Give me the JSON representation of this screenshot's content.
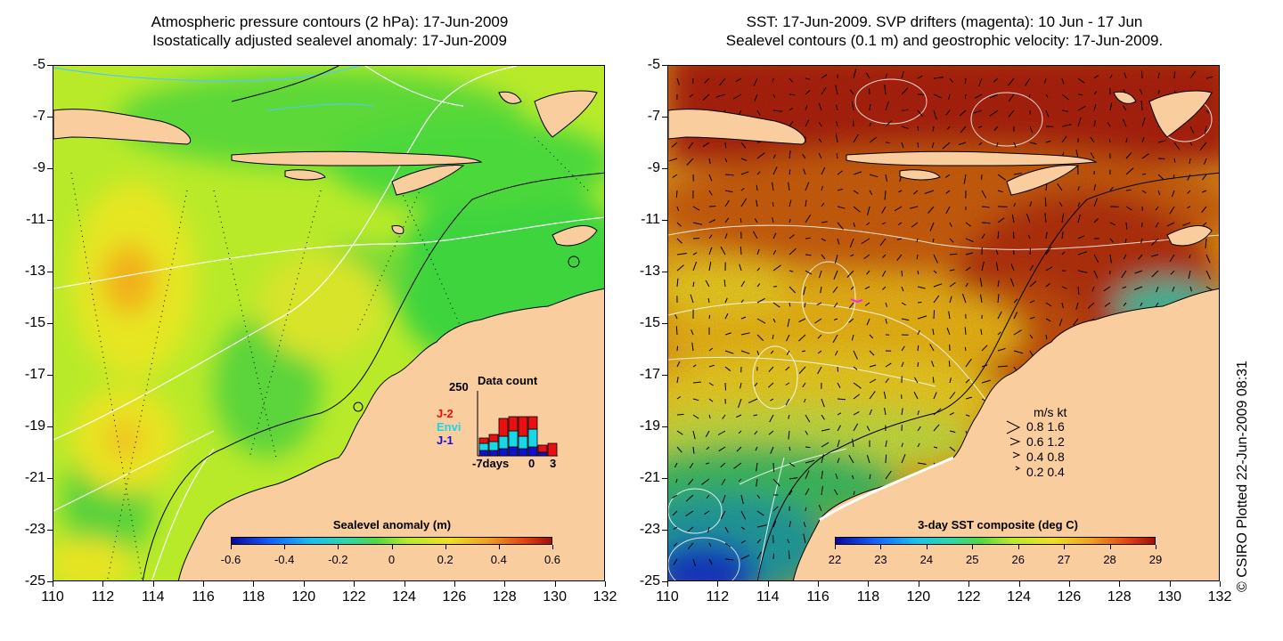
{
  "left_panel": {
    "title_line1": "Atmospheric pressure contours (2 hPa): 17-Jun-2009",
    "title_line2": "Isostatically adjusted sealevel anomaly: 17-Jun-2009",
    "colorbar": {
      "title": "Sealevel anomaly (m)",
      "ticks": [
        "-0.6",
        "-0.4",
        "-0.2",
        "0",
        "0.2",
        "0.4",
        "0.6"
      ]
    },
    "data_count": {
      "title": "Data count",
      "ymax_label": "250",
      "x_left_label": "-7days",
      "x_zero_label": "0",
      "x_right_label": "3",
      "satellites": [
        {
          "name": "J-2",
          "color": "#e81010"
        },
        {
          "name": "Envi",
          "color": "#18d8e8"
        },
        {
          "name": "J-1",
          "color": "#1010d0"
        }
      ]
    }
  },
  "right_panel": {
    "title_line1": "SST: 17-Jun-2009. SVP drifters (magenta): 10 Jun - 17 Jun",
    "title_line2": "Sealevel contours (0.1 m) and geostrophic velocity: 17-Jun-2009.",
    "colorbar": {
      "title": "3-day SST composite (deg C)",
      "ticks": [
        "22",
        "23",
        "24",
        "25",
        "26",
        "27",
        "28",
        "29"
      ]
    },
    "velocity_legend": {
      "header": "m/s  kt",
      "rows": [
        "0.8  1.6",
        "0.6  1.2",
        "0.4  0.8",
        "0.2  0.4"
      ]
    },
    "credit": "© CSIRO Plotted 22-Jun-2009 08:31"
  },
  "axes": {
    "y_ticks": [
      "-5",
      "-7",
      "-9",
      "-11",
      "-13",
      "-15",
      "-17",
      "-19",
      "-21",
      "-23",
      "-25"
    ],
    "x_ticks": [
      "110",
      "112",
      "114",
      "116",
      "118",
      "120",
      "122",
      "124",
      "126",
      "128",
      "130",
      "132"
    ]
  },
  "colors": {
    "land": "#f9cd9e",
    "sla_base": "#b8ea2a",
    "sla_green": "#3cd43c",
    "sla_yellow": "#ecea20",
    "sla_orange": "#f0b020",
    "sst_hot": "#b02008",
    "sst_warm": "#e07a10",
    "sst_mid": "#f0c020",
    "sst_cool": "#38c060",
    "sst_cold": "#1838c8"
  }
}
